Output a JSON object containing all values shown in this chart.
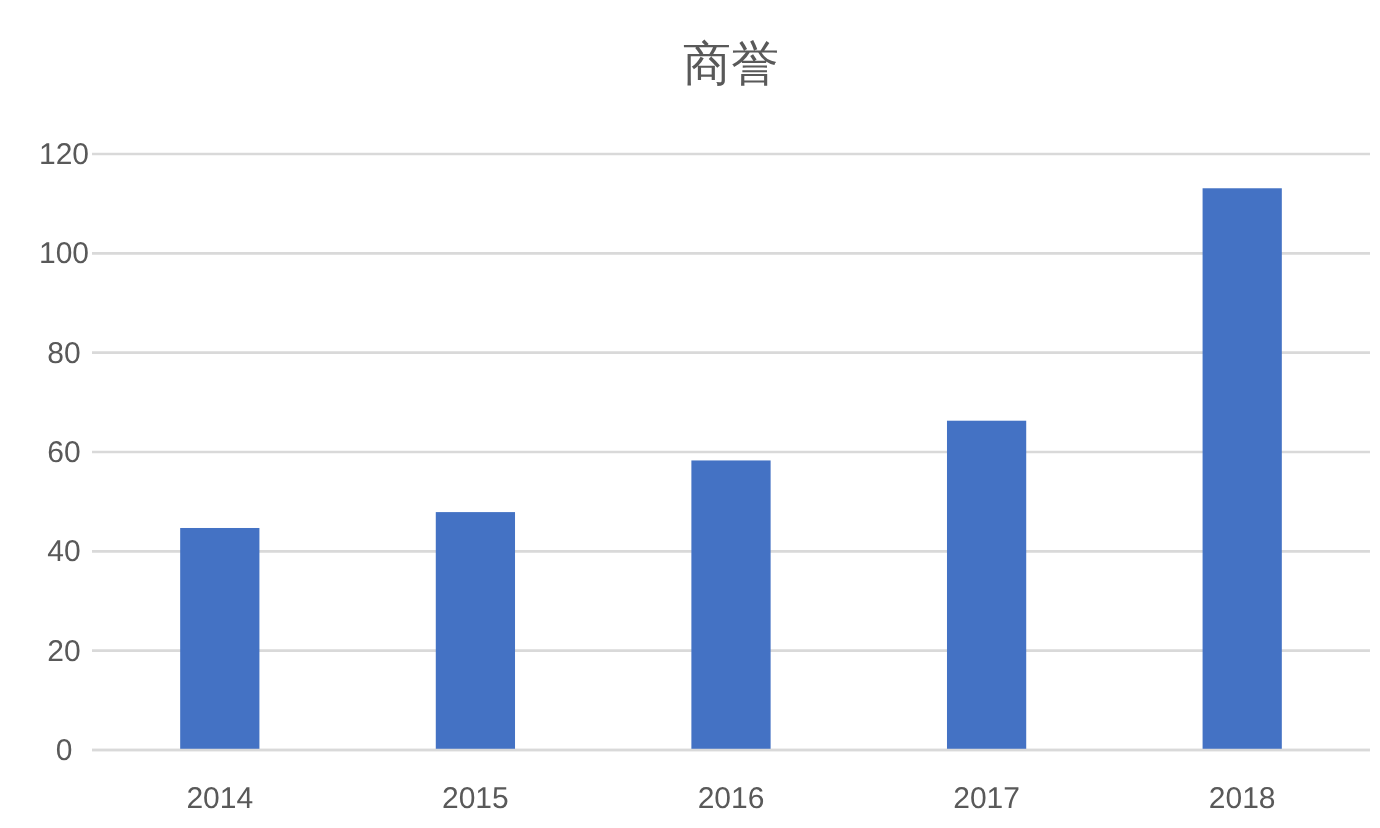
{
  "chart_data": {
    "type": "bar",
    "title": "商誉",
    "categories": [
      "2014",
      "2015",
      "2016",
      "2017",
      "2018"
    ],
    "values": [
      44.7,
      47.9,
      58.3,
      66.3,
      113.1
    ],
    "color": "#4472c4",
    "ylim": [
      0,
      120
    ],
    "yticks": [
      0,
      20,
      40,
      60,
      80,
      100,
      120
    ],
    "grid": "y"
  }
}
